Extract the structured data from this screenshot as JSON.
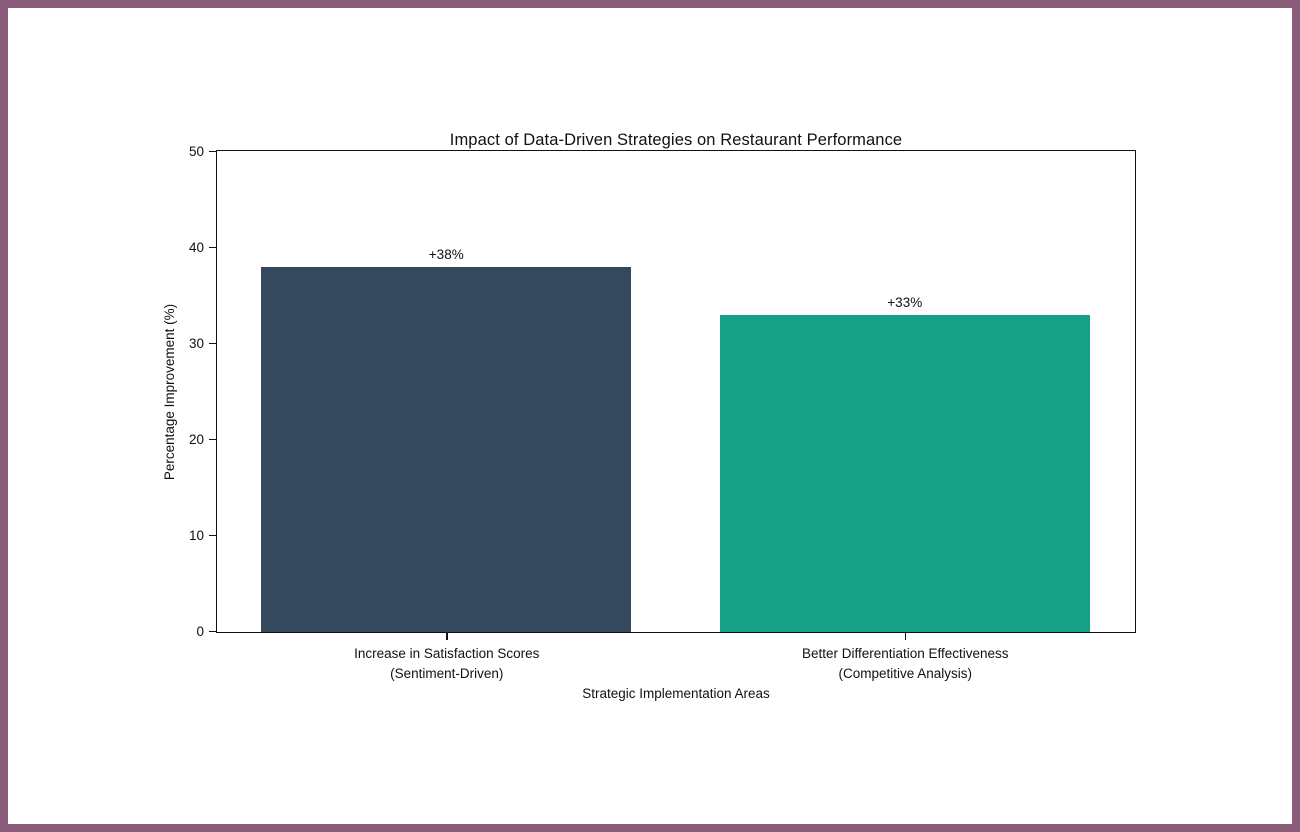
{
  "frame": {
    "border_color": "#8a5c7a",
    "background_color": "#ffffff"
  },
  "chart_data": {
    "type": "bar",
    "title": "Impact of Data-Driven Strategies on Restaurant Performance",
    "xlabel": "Strategic Implementation Areas",
    "ylabel": "Percentage Improvement (%)",
    "categories": [
      "Increase in Satisfaction Scores\n(Sentiment-Driven)",
      "Better Differentiation Effectiveness\n(Competitive Analysis)"
    ],
    "values": [
      38,
      33
    ],
    "bar_labels": [
      "+38%",
      "+33%"
    ],
    "bar_colors": [
      "#34495e",
      "#16a085"
    ],
    "ylim": [
      0,
      50
    ],
    "yticks": [
      0,
      10,
      20,
      30,
      40,
      50
    ],
    "grid": false,
    "legend": null,
    "axis_color": "#111111",
    "text_color": "#111111"
  }
}
